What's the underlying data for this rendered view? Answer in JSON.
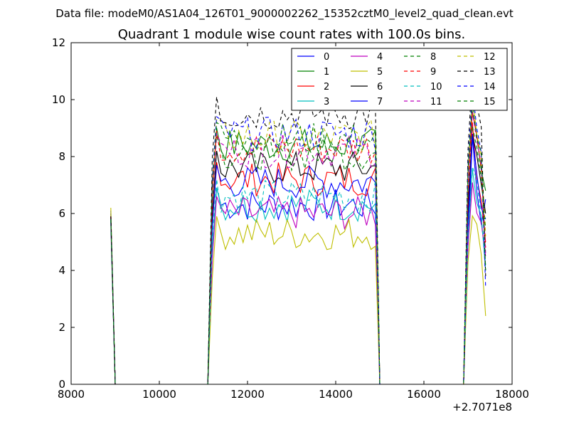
{
  "header": {
    "data_file": "Data file: modeM0/AS1A04_126T01_9000002262_15352cztM0_level2_quad_clean.evt"
  },
  "chart_data": {
    "type": "line",
    "title": "Quadrant 1 module wise count rates with 100.0s bins.",
    "xlabel": "",
    "ylabel": "",
    "xlim": [
      8000,
      18000
    ],
    "ylim": [
      0,
      12
    ],
    "x_offset_label": "+2.7071e8",
    "x_ticks": [
      8000,
      10000,
      12000,
      14000,
      16000,
      18000
    ],
    "x_tick_labels": [
      "8000",
      "10000",
      "12000",
      "14000",
      "16000",
      "18000"
    ],
    "y_ticks": [
      0,
      2,
      4,
      6,
      8,
      10,
      12
    ],
    "y_tick_labels": [
      "0",
      "2",
      "4",
      "6",
      "8",
      "10",
      "12"
    ],
    "grid": false,
    "legend_position": "top-right",
    "legend_columns": 4,
    "segments": [
      {
        "start": 8900,
        "count": 2
      },
      {
        "start": 9100,
        "count": 21,
        "zero": true
      },
      {
        "start": 11200,
        "count": 39
      },
      {
        "start": 15100,
        "count": 19,
        "zero": true
      },
      {
        "start": 17000,
        "count": 5
      }
    ],
    "series": [
      {
        "name": "0",
        "color": "#0000ff",
        "dashed": false,
        "base": 6.3,
        "start": 6.1,
        "peak": 8.9,
        "end": 6.5
      },
      {
        "name": "1",
        "color": "#008000",
        "dashed": false,
        "base": 8.4,
        "start": 5.8,
        "peak": 9.5,
        "end": 6.8
      },
      {
        "name": "2",
        "color": "#ff0000",
        "dashed": false,
        "base": 7.2,
        "start": 5.9,
        "peak": 9.2,
        "end": 5.0
      },
      {
        "name": "3",
        "color": "#00bfbf",
        "dashed": false,
        "base": 6.3,
        "start": 5.7,
        "peak": 7.6,
        "end": 4.0
      },
      {
        "name": "4",
        "color": "#bf00bf",
        "dashed": false,
        "base": 6.0,
        "start": 5.6,
        "peak": 7.2,
        "end": 4.5
      },
      {
        "name": "5",
        "color": "#bfbf00",
        "dashed": false,
        "base": 5.3,
        "start": 6.2,
        "peak": 6.2,
        "end": 2.4
      },
      {
        "name": "6",
        "color": "#000000",
        "dashed": false,
        "base": 7.6,
        "start": 5.9,
        "peak": 8.6,
        "end": 6.0
      },
      {
        "name": "7",
        "color": "#0000ff",
        "dashed": false,
        "base": 7.1,
        "start": 6.0,
        "peak": 8.8,
        "end": 5.8
      },
      {
        "name": "8",
        "color": "#008000",
        "dashed": true,
        "base": 8.1,
        "start": 5.8,
        "peak": 9.3,
        "end": 5.5
      },
      {
        "name": "9",
        "color": "#ff0000",
        "dashed": true,
        "base": 8.3,
        "start": 5.9,
        "peak": 9.6,
        "end": 4.8
      },
      {
        "name": "10",
        "color": "#00bfbf",
        "dashed": true,
        "base": 6.6,
        "start": 5.7,
        "peak": 7.8,
        "end": 4.2
      },
      {
        "name": "11",
        "color": "#bf00bf",
        "dashed": true,
        "base": 8.2,
        "start": 5.8,
        "peak": 9.4,
        "end": 4.6
      },
      {
        "name": "12",
        "color": "#bfbf00",
        "dashed": true,
        "base": 8.7,
        "start": 6.0,
        "peak": 10.2,
        "end": 5.2
      },
      {
        "name": "13",
        "color": "#000000",
        "dashed": true,
        "base": 9.5,
        "start": 5.9,
        "peak": 10.9,
        "end": 3.8
      },
      {
        "name": "14",
        "color": "#0000ff",
        "dashed": true,
        "base": 8.8,
        "start": 5.8,
        "peak": 10.6,
        "end": 3.4
      },
      {
        "name": "15",
        "color": "#008000",
        "dashed": true,
        "base": 8.6,
        "start": 5.8,
        "peak": 9.8,
        "end": 4.0
      }
    ]
  }
}
